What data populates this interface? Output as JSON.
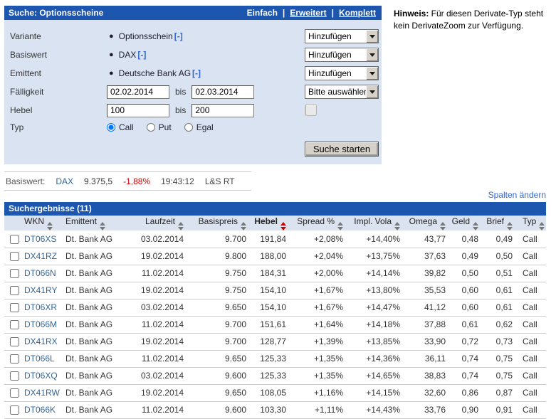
{
  "colors": {
    "header_blue": "#1d56ae",
    "panel_bg": "#d9e3f2",
    "link_blue": "#3366cc",
    "table_link_blue": "#336699",
    "negative_red": "#cc0000"
  },
  "search_panel": {
    "title": "Suche: Optionsscheine",
    "modes": [
      {
        "label": "Einfach",
        "active": true
      },
      {
        "label": "Erweitert",
        "active": false
      },
      {
        "label": "Komplett",
        "active": false
      }
    ],
    "mode_separator": "|",
    "rows": {
      "variante": {
        "label": "Variante",
        "value": "Optionsschein",
        "remove_label": "[-]",
        "dropdown": "Hinzufügen"
      },
      "basiswert": {
        "label": "Basiswert",
        "value": "DAX",
        "remove_label": "[-]",
        "dropdown": "Hinzufügen"
      },
      "emittent": {
        "label": "Emittent",
        "value": "Deutsche Bank AG",
        "remove_label": "[-]",
        "dropdown": "Hinzufügen"
      },
      "faelligkeit": {
        "label": "Fälligkeit",
        "from": "02.02.2014",
        "bis_label": "bis",
        "to": "02.03.2014",
        "dropdown": "Bitte auswählen"
      },
      "hebel": {
        "label": "Hebel",
        "from": "100",
        "bis_label": "bis",
        "to": "200"
      },
      "typ": {
        "label": "Typ",
        "options": [
          {
            "label": "Call",
            "selected": true
          },
          {
            "label": "Put",
            "selected": false
          },
          {
            "label": "Egal",
            "selected": false
          }
        ]
      }
    },
    "submit_label": "Suche starten"
  },
  "hinweis": {
    "label": "Hinweis:",
    "text": " Für diesen Derivate-Typ steht kein DerivateZoom zur Verfügung."
  },
  "ticker": {
    "label": "Basiswert:",
    "name": "DAX",
    "price": "9.375,5",
    "change": "-1,88%",
    "time": "19:43:12",
    "source": "L&S RT"
  },
  "spalten_link": "Spalten ändern",
  "results": {
    "title": "Suchergebnisse (11)",
    "columns": [
      "WKN",
      "Emittent",
      "Laufzeit",
      "Basispreis",
      "Hebel",
      "Spread %",
      "Impl. Vola",
      "Omega",
      "Geld",
      "Brief",
      "Typ"
    ],
    "sorted_column": "Hebel",
    "rows": [
      {
        "wkn": "DT06XS",
        "emittent": "Dt. Bank AG",
        "laufzeit": "03.02.2014",
        "basispreis": "9.700",
        "hebel": "191,84",
        "spread": "+2,08%",
        "impl_vola": "+14,40%",
        "omega": "43,77",
        "geld": "0,48",
        "brief": "0,49",
        "typ": "Call"
      },
      {
        "wkn": "DX41RZ",
        "emittent": "Dt. Bank AG",
        "laufzeit": "19.02.2014",
        "basispreis": "9.800",
        "hebel": "188,00",
        "spread": "+2,04%",
        "impl_vola": "+13,75%",
        "omega": "37,63",
        "geld": "0,49",
        "brief": "0,50",
        "typ": "Call"
      },
      {
        "wkn": "DT066N",
        "emittent": "Dt. Bank AG",
        "laufzeit": "11.02.2014",
        "basispreis": "9.750",
        "hebel": "184,31",
        "spread": "+2,00%",
        "impl_vola": "+14,14%",
        "omega": "39,82",
        "geld": "0,50",
        "brief": "0,51",
        "typ": "Call"
      },
      {
        "wkn": "DX41RY",
        "emittent": "Dt. Bank AG",
        "laufzeit": "19.02.2014",
        "basispreis": "9.750",
        "hebel": "154,10",
        "spread": "+1,67%",
        "impl_vola": "+13,80%",
        "omega": "35,53",
        "geld": "0,60",
        "brief": "0,61",
        "typ": "Call"
      },
      {
        "wkn": "DT06XR",
        "emittent": "Dt. Bank AG",
        "laufzeit": "03.02.2014",
        "basispreis": "9.650",
        "hebel": "154,10",
        "spread": "+1,67%",
        "impl_vola": "+14,47%",
        "omega": "41,12",
        "geld": "0,60",
        "brief": "0,61",
        "typ": "Call"
      },
      {
        "wkn": "DT066M",
        "emittent": "Dt. Bank AG",
        "laufzeit": "11.02.2014",
        "basispreis": "9.700",
        "hebel": "151,61",
        "spread": "+1,64%",
        "impl_vola": "+14,18%",
        "omega": "37,88",
        "geld": "0,61",
        "brief": "0,62",
        "typ": "Call"
      },
      {
        "wkn": "DX41RX",
        "emittent": "Dt. Bank AG",
        "laufzeit": "19.02.2014",
        "basispreis": "9.700",
        "hebel": "128,77",
        "spread": "+1,39%",
        "impl_vola": "+13,85%",
        "omega": "33,90",
        "geld": "0,72",
        "brief": "0,73",
        "typ": "Call"
      },
      {
        "wkn": "DT066L",
        "emittent": "Dt. Bank AG",
        "laufzeit": "11.02.2014",
        "basispreis": "9.650",
        "hebel": "125,33",
        "spread": "+1,35%",
        "impl_vola": "+14,36%",
        "omega": "36,11",
        "geld": "0,74",
        "brief": "0,75",
        "typ": "Call"
      },
      {
        "wkn": "DT06XQ",
        "emittent": "Dt. Bank AG",
        "laufzeit": "03.02.2014",
        "basispreis": "9.600",
        "hebel": "125,33",
        "spread": "+1,35%",
        "impl_vola": "+14,65%",
        "omega": "38,83",
        "geld": "0,74",
        "brief": "0,75",
        "typ": "Call"
      },
      {
        "wkn": "DX41RW",
        "emittent": "Dt. Bank AG",
        "laufzeit": "19.02.2014",
        "basispreis": "9.650",
        "hebel": "108,05",
        "spread": "+1,16%",
        "impl_vola": "+14,15%",
        "omega": "32,60",
        "geld": "0,86",
        "brief": "0,87",
        "typ": "Call"
      },
      {
        "wkn": "DT066K",
        "emittent": "Dt. Bank AG",
        "laufzeit": "11.02.2014",
        "basispreis": "9.600",
        "hebel": "103,30",
        "spread": "+1,11%",
        "impl_vola": "+14,43%",
        "omega": "33,76",
        "geld": "0,90",
        "brief": "0,91",
        "typ": "Call"
      }
    ]
  }
}
